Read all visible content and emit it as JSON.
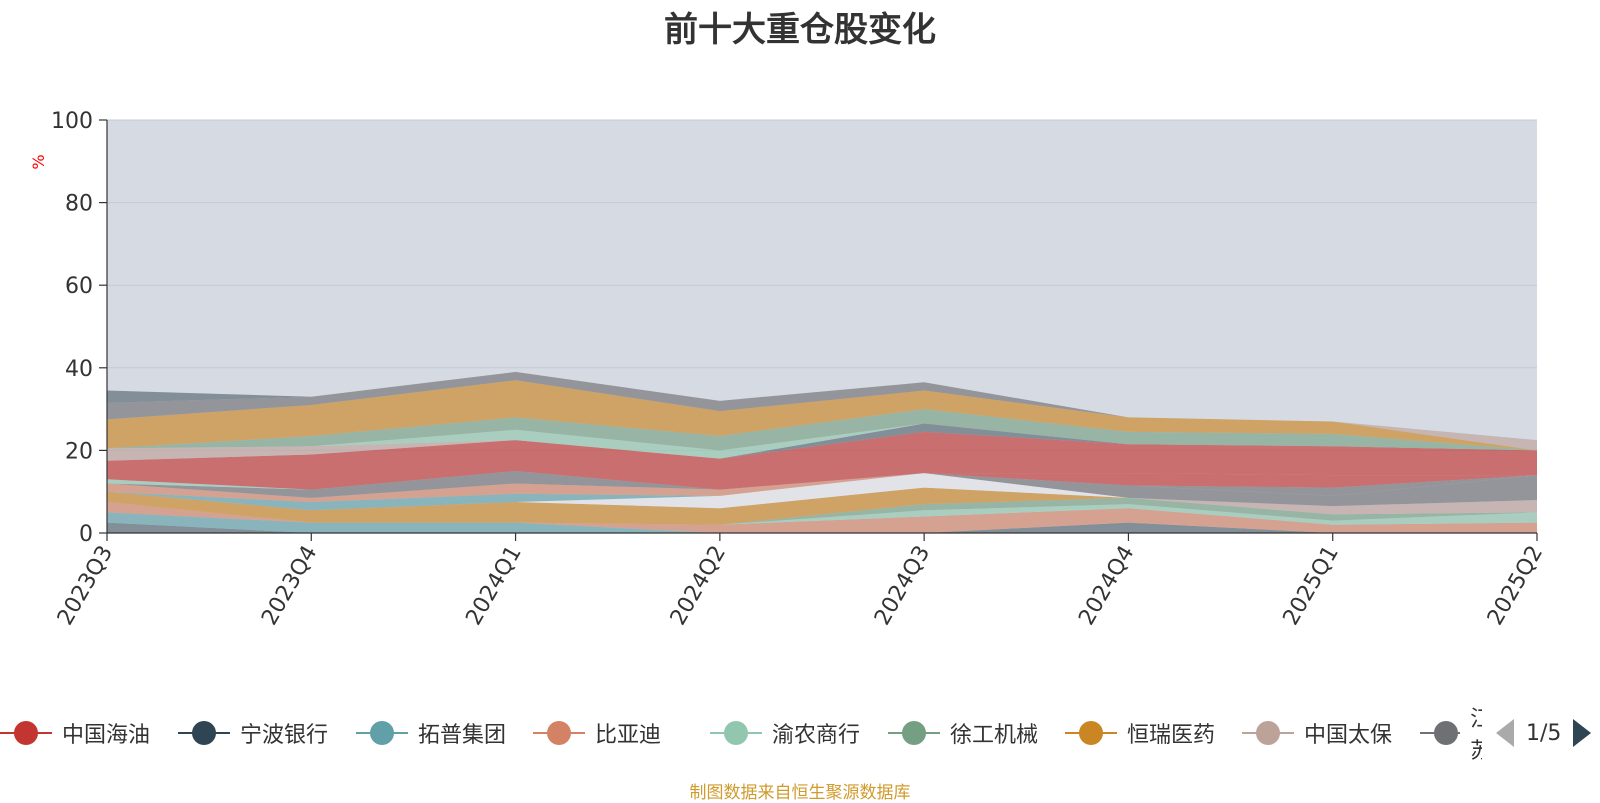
{
  "title": "前十大重仓股变化",
  "footer": "制图数据来自恒生聚源数据库",
  "pager": {
    "text": "1/5"
  },
  "legend": [
    {
      "name": "中国海油",
      "color": "#c23531"
    },
    {
      "name": "宁波银行",
      "color": "#2f4554"
    },
    {
      "name": "拓普集团",
      "color": "#61a0a8"
    },
    {
      "name": "比亚迪",
      "color": "#d48265"
    },
    {
      "name": "渝农商行",
      "color": "#91c7ae"
    },
    {
      "name": "徐工机械",
      "color": "#749f83"
    },
    {
      "name": "恒瑞医药",
      "color": "#ca8622"
    },
    {
      "name": "中国太保",
      "color": "#bda29a"
    },
    {
      "name": "江苏",
      "color": "#6e7074"
    }
  ],
  "chart_data": {
    "type": "area",
    "title": "前十大重仓股变化",
    "ylabel": "%",
    "ylim": [
      0,
      100
    ],
    "yticks": [
      0,
      20,
      40,
      60,
      80,
      100
    ],
    "categories": [
      "2023Q3",
      "2023Q4",
      "2024Q1",
      "2024Q2",
      "2024Q3",
      "2024Q4",
      "2025Q1",
      "2025Q2"
    ],
    "stacked": true,
    "series": [
      {
        "color": "#546570",
        "values": [
          2.5,
          0,
          0,
          0,
          0,
          2.5,
          0,
          0
        ]
      },
      {
        "color": "#61a0a8",
        "values": [
          2.5,
          2.5,
          2.5,
          0,
          0,
          0,
          0,
          0
        ]
      },
      {
        "color": "#d48265",
        "values": [
          2.5,
          0,
          0,
          2.0,
          4.0,
          3.5,
          2.0,
          2.5
        ]
      },
      {
        "color": "#91c7ae",
        "values": [
          0,
          0,
          0,
          0,
          1.5,
          1.0,
          1.0,
          2.5
        ]
      },
      {
        "color": "#749f83",
        "values": [
          0,
          0,
          0,
          0,
          1.5,
          1.5,
          1.5,
          0
        ]
      },
      {
        "color": "#ca8622",
        "values": [
          2.5,
          3.0,
          5.0,
          4.0,
          4.0,
          0,
          0,
          0
        ]
      },
      {
        "color": "#e6e8ed",
        "values": [
          0,
          0,
          0,
          3.0,
          3.5,
          0,
          0,
          0
        ]
      },
      {
        "color": "#bda29a",
        "values": [
          0,
          0,
          0,
          0,
          0,
          0,
          2.0,
          3.0
        ]
      },
      {
        "color": "#6e7074",
        "values": [
          0,
          0,
          0,
          0,
          0,
          3.0,
          2.5,
          6.0
        ]
      },
      {
        "color": "#61a0a8",
        "values": [
          0,
          2.0,
          2.0,
          0,
          0,
          0,
          0,
          0
        ]
      },
      {
        "color": "#d48265",
        "values": [
          2.0,
          1.0,
          2.5,
          1.5,
          0,
          0,
          0,
          0
        ]
      },
      {
        "color": "#6e7074",
        "values": [
          0,
          2.0,
          3.0,
          0,
          0,
          0,
          2.0,
          0
        ]
      },
      {
        "color": "#c23531",
        "values": [
          0,
          0,
          0,
          0,
          0,
          3.0,
          3.0,
          0
        ]
      },
      {
        "color": "#91c7ae",
        "values": [
          1.0,
          0,
          0,
          0,
          0,
          0,
          0,
          0
        ]
      },
      {
        "color": "#c23531",
        "values": [
          4.5,
          8.5,
          7.5,
          7.5,
          10.0,
          7.0,
          7.0,
          6.0
        ]
      },
      {
        "color": "#546570",
        "values": [
          0,
          0,
          0,
          0,
          2.0,
          0,
          0,
          0
        ]
      },
      {
        "color": "#bda29a",
        "values": [
          3.0,
          2.0,
          0,
          0,
          0,
          0,
          0,
          0
        ]
      },
      {
        "color": "#91c7ae",
        "values": [
          0,
          0,
          2.5,
          2.0,
          0,
          0,
          0,
          0
        ]
      },
      {
        "color": "#749f83",
        "values": [
          0,
          2.5,
          3.0,
          3.5,
          3.5,
          3.0,
          3.0,
          0
        ]
      },
      {
        "color": "#ca8622",
        "values": [
          7.0,
          7.5,
          9.0,
          6.0,
          4.5,
          3.5,
          3.0,
          0
        ]
      },
      {
        "color": "#bda29a",
        "values": [
          0,
          0,
          0,
          0,
          0,
          0,
          0,
          2.5
        ]
      },
      {
        "color": "#6e7074",
        "values": [
          4.0,
          2.0,
          2.0,
          2.5,
          2.0,
          0,
          0,
          0
        ]
      },
      {
        "color": "#546570",
        "values": [
          3.0,
          0,
          0,
          0,
          0,
          0,
          0,
          0
        ]
      }
    ]
  }
}
